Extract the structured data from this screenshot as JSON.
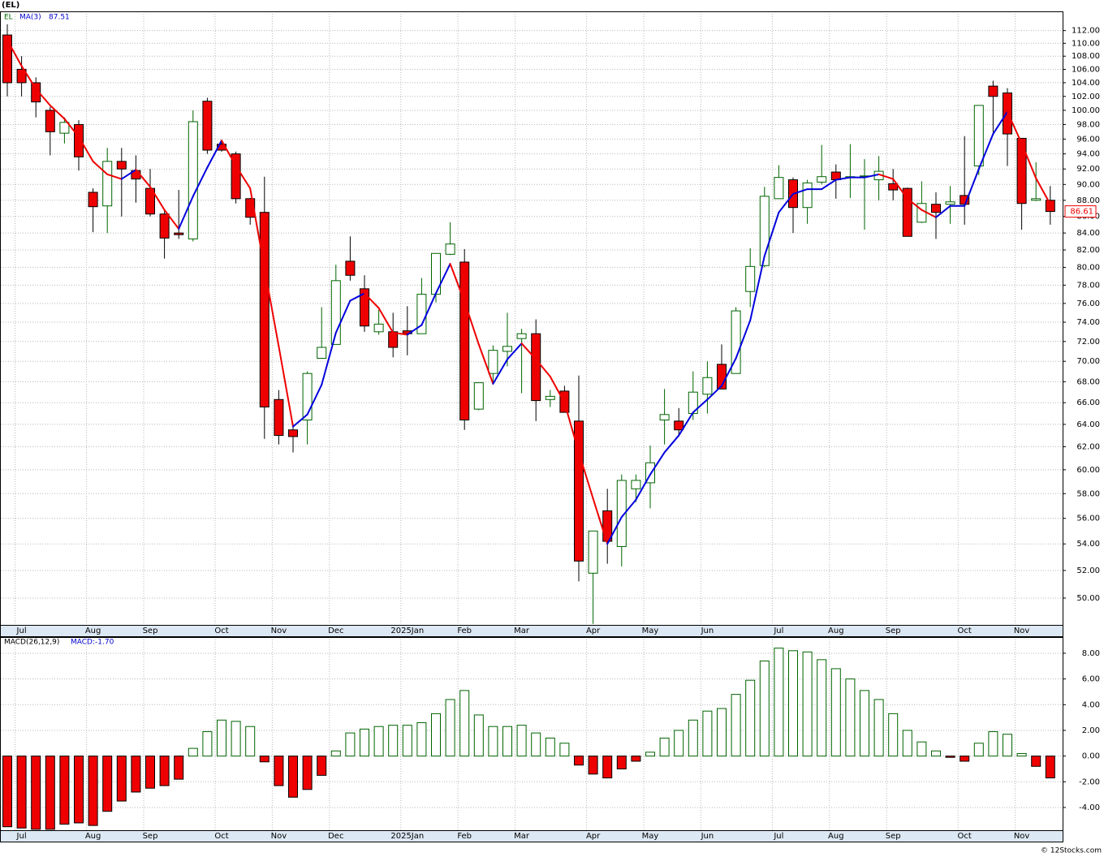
{
  "credit": "© 12Stocks.com",
  "chart_data": [
    {
      "type": "candlestick",
      "title": "(EL)",
      "symbol": "EL",
      "categories": [
        null,
        "Jul",
        null,
        null,
        null,
        null,
        "Aug",
        null,
        null,
        null,
        "Sep",
        null,
        null,
        null,
        null,
        "Oct",
        null,
        null,
        null,
        "Nov",
        null,
        null,
        null,
        "Dec",
        null,
        null,
        null,
        null,
        "2025Jan",
        null,
        null,
        null,
        "Feb",
        null,
        null,
        null,
        "Mar",
        null,
        null,
        null,
        null,
        "Apr",
        null,
        null,
        null,
        "May",
        null,
        null,
        null,
        "Jun",
        null,
        null,
        null,
        null,
        "Jul",
        null,
        null,
        null,
        "Aug",
        null,
        null,
        null,
        "Sep",
        null,
        null,
        null,
        null,
        "Oct",
        null,
        null,
        null,
        "Nov",
        null,
        null
      ],
      "open": [
        111.3,
        106,
        104,
        100,
        96.8,
        98,
        89,
        87.3,
        93,
        91.8,
        89.5,
        86.3,
        84,
        83.3,
        101.3,
        95.3,
        94,
        88.2,
        86.5,
        66.3,
        63.5,
        64.4,
        70.3,
        71.7,
        80.7,
        77.6,
        73,
        73,
        73.1,
        72.8,
        77,
        81.5,
        80.6,
        65.4,
        68.8,
        71,
        72.3,
        72.8,
        66.3,
        67.1,
        64.3,
        51.8,
        56.6,
        53.8,
        58.4,
        58.9,
        64.4,
        64.3,
        65,
        66.8,
        69.7,
        68.8,
        77.3,
        80.2,
        88.2,
        90.6,
        87.1,
        90.3,
        91.6,
        90.9,
        91,
        90.6,
        90.1,
        89.5,
        85.3,
        87.5,
        87.5,
        88.6,
        92.4,
        103.5,
        102.5,
        96.1,
        88,
        88
      ],
      "high": [
        113,
        108,
        104.8,
        100.5,
        99,
        98.6,
        89.5,
        94.8,
        94.8,
        93.8,
        92,
        86.8,
        89.3,
        100,
        101.8,
        95.8,
        94.3,
        88.3,
        91,
        67.2,
        64.1,
        69,
        75.6,
        80.3,
        83.6,
        79.1,
        75.3,
        75,
        75.7,
        78.8,
        81.6,
        85.3,
        82.1,
        67.9,
        71.6,
        75,
        73.3,
        74.3,
        67.2,
        67.6,
        68.6,
        55,
        58.4,
        59.6,
        59.6,
        62.1,
        67.3,
        65.5,
        69,
        70,
        71.7,
        75.6,
        82.2,
        89.7,
        92.5,
        90.9,
        90.6,
        95.2,
        92.6,
        95.3,
        93.3,
        93.7,
        92,
        89.6,
        90.4,
        89,
        89.8,
        96.4,
        100.7,
        104.3,
        103.2,
        96.1,
        92.9,
        89.8
      ],
      "low": [
        102,
        102,
        99,
        93.8,
        95.4,
        91.8,
        84.1,
        84,
        86,
        87.7,
        86,
        81,
        83.3,
        83,
        94,
        94.3,
        87.6,
        85,
        62.7,
        62.2,
        61.5,
        62.2,
        70.3,
        71.7,
        78.5,
        73,
        72.7,
        70.4,
        70.6,
        72.8,
        76.1,
        81.4,
        63.5,
        65.3,
        67.9,
        69.5,
        66.9,
        64.3,
        65.6,
        65.1,
        51.2,
        48.2,
        52.5,
        52.3,
        57.3,
        56.8,
        62.2,
        62.9,
        64.4,
        65,
        67.3,
        68.8,
        75.6,
        80,
        88.2,
        84,
        85.1,
        90,
        88.2,
        88.3,
        84.4,
        88,
        88,
        83.6,
        85.2,
        83.3,
        85.1,
        85,
        91.2,
        96.9,
        92.4,
        84.4,
        87.9,
        85
      ],
      "close": [
        104,
        104,
        101.2,
        97,
        98.3,
        93.6,
        87.2,
        93,
        92,
        90.7,
        86.3,
        83.4,
        83.8,
        98.4,
        94.5,
        94.5,
        88.2,
        85.9,
        65.6,
        63,
        62.9,
        68.8,
        71.4,
        78.5,
        79.1,
        73.6,
        73.8,
        71.4,
        72.8,
        77,
        81.6,
        82.7,
        64.4,
        67.9,
        71.1,
        71.5,
        72.8,
        66.2,
        66.6,
        65.1,
        52.7,
        55,
        54.2,
        59.1,
        59.1,
        60.6,
        64.9,
        63.5,
        67,
        68.4,
        67.3,
        75.2,
        80.1,
        88.5,
        90.9,
        87.1,
        90.2,
        91,
        90.6,
        91,
        91.1,
        91.7,
        89.3,
        83.6,
        87.6,
        86.5,
        87.8,
        87.5,
        100.7,
        102,
        96.7,
        87.6,
        88.2,
        86.61
      ],
      "up_color": "#006400",
      "down_color": "#ee0000",
      "overlay": {
        "name": "MA(3)",
        "up_color": "#0000dd",
        "down_color": "#ee0000",
        "values": [
          110.5,
          106.5,
          103.1,
          100.7,
          98.8,
          96.3,
          93,
          91.3,
          90.7,
          91.9,
          89.7,
          86.8,
          84.5,
          88.5,
          92.2,
          95.8,
          92.4,
          89.5,
          79.9,
          71.5,
          63.8,
          64.9,
          67.7,
          72.9,
          76.3,
          77.1,
          75.5,
          72.9,
          72.7,
          73.7,
          77.1,
          80.4,
          76.2,
          71.7,
          67.8,
          70.2,
          71.8,
          70.2,
          68.5,
          66,
          61.5,
          57.6,
          54,
          56.1,
          57.5,
          59.6,
          61.5,
          63,
          65.1,
          66.3,
          67.6,
          70.3,
          74.2,
          81.3,
          86.5,
          88.8,
          89.4,
          89.4,
          90.6,
          90.9,
          90.9,
          91.3,
          90.7,
          88.2,
          86.8,
          85.9,
          87.3,
          87.3,
          92,
          96.7,
          99.8,
          95.4,
          90.8,
          87.51
        ]
      },
      "log": true,
      "grid": true,
      "ylim": [
        48.13,
        115.1
      ],
      "yticks": [
        {
          "value": 50,
          "label": "50.00"
        },
        {
          "value": 52,
          "label": "52.00"
        },
        {
          "value": 54,
          "label": "54.00"
        },
        {
          "value": 56,
          "label": "56.00"
        },
        {
          "value": 58,
          "label": "58.00"
        },
        {
          "value": 60,
          "label": "60.00"
        },
        {
          "value": 62,
          "label": "62.00"
        },
        {
          "value": 64,
          "label": "64.00"
        },
        {
          "value": 66,
          "label": "66.00"
        },
        {
          "value": 68,
          "label": "68.00"
        },
        {
          "value": 70,
          "label": "70.00"
        },
        {
          "value": 72,
          "label": "72.00"
        },
        {
          "value": 74,
          "label": "74.00"
        },
        {
          "value": 76,
          "label": "76.00"
        },
        {
          "value": 78,
          "label": "78.00"
        },
        {
          "value": 80,
          "label": "80.00"
        },
        {
          "value": 82,
          "label": "82.00"
        },
        {
          "value": 84,
          "label": "84.00"
        },
        {
          "value": 86,
          "label": "86.00"
        },
        {
          "value": 88,
          "label": "88.00"
        },
        {
          "value": 90,
          "label": "90.00"
        },
        {
          "value": 92,
          "label": "92.00"
        },
        {
          "value": 94,
          "label": "94.00"
        },
        {
          "value": 96,
          "label": "96.00"
        },
        {
          "value": 98,
          "label": "98.00"
        },
        {
          "value": 100,
          "label": "100.00"
        },
        {
          "value": 102,
          "label": "102.00"
        },
        {
          "value": 104,
          "label": "104.00"
        },
        {
          "value": 106,
          "label": "106.00"
        },
        {
          "value": 108,
          "label": "108.00"
        },
        {
          "value": 110,
          "label": "110.00"
        },
        {
          "value": 112,
          "label": "112.00"
        }
      ]
    },
    {
      "type": "bar",
      "title": "MACD(26,12,9)",
      "value_label": "MACD:-1.70",
      "categories": [
        null,
        "Jul",
        null,
        null,
        null,
        null,
        "Aug",
        null,
        null,
        null,
        "Sep",
        null,
        null,
        null,
        null,
        "Oct",
        null,
        null,
        null,
        "Nov",
        null,
        null,
        null,
        "Dec",
        null,
        null,
        null,
        null,
        "2025Jan",
        null,
        null,
        null,
        "Feb",
        null,
        null,
        null,
        "Mar",
        null,
        null,
        null,
        null,
        "Apr",
        null,
        null,
        null,
        "May",
        null,
        null,
        null,
        "Jun",
        null,
        null,
        null,
        null,
        "Jul",
        null,
        null,
        null,
        "Aug",
        null,
        null,
        null,
        "Sep",
        null,
        null,
        null,
        null,
        "Oct",
        null,
        null,
        null,
        "Nov",
        null,
        null
      ],
      "values": [
        -5.5,
        -5.6,
        -5.7,
        -5.7,
        -5.3,
        -5.2,
        -5.4,
        -4.3,
        -3.5,
        -2.8,
        -2.5,
        -2.3,
        -1.8,
        0.6,
        1.9,
        2.8,
        2.7,
        2.3,
        -0.45,
        -2.3,
        -3.2,
        -2.6,
        -1.5,
        0.4,
        1.8,
        2.1,
        2.3,
        2.4,
        2.4,
        2.6,
        3.3,
        4.4,
        5.1,
        3.2,
        2.3,
        2.3,
        2.4,
        1.8,
        1.4,
        1,
        -0.7,
        -1.4,
        -1.7,
        -1,
        -0.4,
        0.3,
        1.4,
        2,
        2.8,
        3.5,
        3.7,
        4.8,
        5.9,
        7.4,
        8.4,
        8.2,
        8.1,
        7.5,
        6.8,
        6,
        5.1,
        4.4,
        3.3,
        2,
        1.1,
        0.4,
        -0.1,
        -0.4,
        1,
        1.9,
        1.7,
        0.2,
        -0.8,
        -1.7
      ],
      "up_color": "#006400",
      "down_color": "#ee0000",
      "grid": true,
      "ylim": [
        -5.77,
        9.26
      ],
      "yticks": [
        {
          "value": -4,
          "label": "-4.00"
        },
        {
          "value": -2,
          "label": "-2.00"
        },
        {
          "value": 0,
          "label": "0.00"
        },
        {
          "value": 2,
          "label": "2.00"
        },
        {
          "value": 4,
          "label": "4.00"
        },
        {
          "value": 6,
          "label": "6.00"
        },
        {
          "value": 8,
          "label": "8.00"
        }
      ]
    }
  ]
}
